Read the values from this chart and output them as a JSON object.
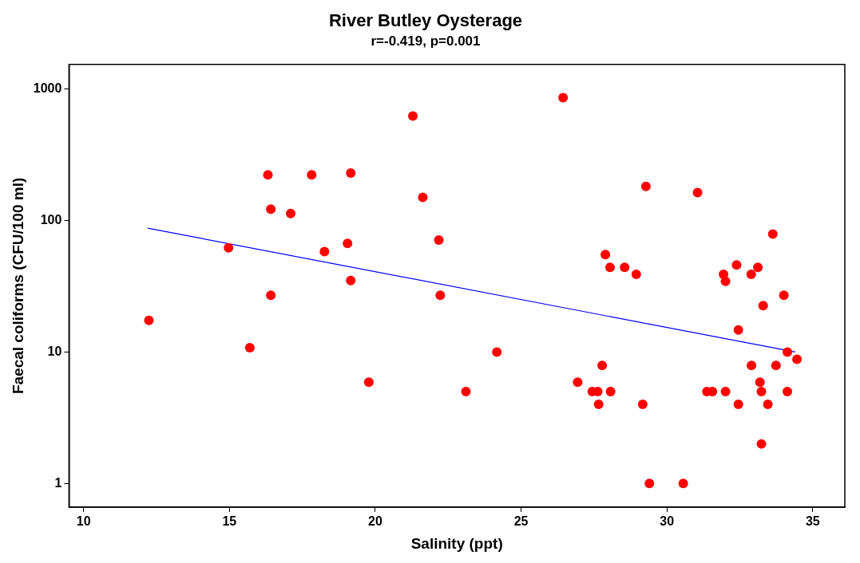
{
  "chart_data": {
    "type": "scatter",
    "title": "River Butley Oysterage",
    "subtitle": "r=-0.419, p=0.001",
    "xlabel": "Salinity (ppt)",
    "ylabel": "Faecal coliforms (CFU/100 ml)",
    "log": "y",
    "xlim": [
      9.5,
      36.1
    ],
    "xticks": [
      10,
      15,
      20,
      25,
      30,
      35
    ],
    "ylim": [
      0.66,
      1540
    ],
    "yticks": [
      1,
      10,
      100,
      1000
    ],
    "legend": false,
    "series": [
      {
        "type": "scatter",
        "color": "#ff0000",
        "marker": "circle",
        "x": [
          12.24,
          14.97,
          15.7,
          16.32,
          16.42,
          16.42,
          17.1,
          17.82,
          18.26,
          19.05,
          19.16,
          19.16,
          19.78,
          21.29,
          21.63,
          22.18,
          22.23,
          26.44,
          23.11,
          24.17,
          26.94,
          27.44,
          27.63,
          28.07,
          27.66,
          27.78,
          27.89,
          28.05,
          28.55,
          28.95,
          29.17,
          29.28,
          29.4,
          30.56,
          31.05,
          31.37,
          31.56,
          32.01,
          31.94,
          32.01,
          32.39,
          32.45,
          32.45,
          32.89,
          33.12,
          32.9,
          33.19,
          33.24,
          33.24,
          33.3,
          33.46,
          33.63,
          33.74,
          34.01,
          34.13,
          34.13,
          34.46
        ],
        "values": [
          17.4,
          62,
          10.8,
          223,
          122,
          27,
          113,
          223,
          58,
          67,
          230,
          35,
          5.9,
          623,
          150,
          71,
          27,
          860,
          5,
          10,
          5.9,
          5,
          5,
          5,
          4,
          7.9,
          55,
          44,
          44,
          39,
          4,
          182,
          1,
          1,
          163,
          5,
          5,
          5,
          39,
          34.5,
          46,
          14.7,
          4,
          39,
          44,
          7.9,
          5.9,
          5,
          2,
          22.5,
          4,
          79,
          7.9,
          27,
          10,
          5,
          8.8
        ]
      },
      {
        "type": "line",
        "color": "#0000ff",
        "marker": "none",
        "line_style": "solid",
        "x": [
          12.2,
          34.4
        ],
        "values": [
          87.5,
          10
        ]
      }
    ]
  }
}
